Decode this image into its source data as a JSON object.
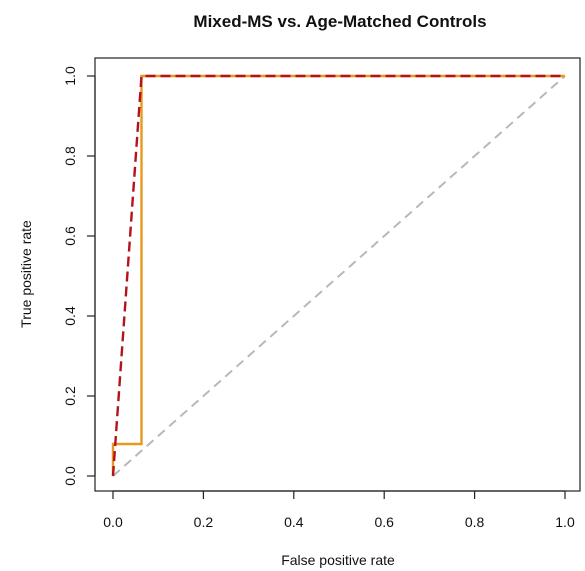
{
  "chart_data": {
    "type": "line",
    "title": "Mixed-MS vs. Age-Matched Controls",
    "xlabel": "False positive rate",
    "ylabel": "True positive rate",
    "xlim": [
      0,
      1
    ],
    "ylim": [
      0,
      1
    ],
    "x_ticks": [
      "0.0",
      "0.2",
      "0.4",
      "0.6",
      "0.8",
      "1.0"
    ],
    "y_ticks": [
      "0.0",
      "0.2",
      "0.4",
      "0.6",
      "0.8",
      "1.0"
    ],
    "grid": false,
    "series": [
      {
        "color": "#e69a1e",
        "style": "solid",
        "x": [
          0,
          0,
          0.063,
          0.063,
          1
        ],
        "y": [
          0,
          0.08,
          0.08,
          1,
          1
        ]
      },
      {
        "color": "#b5121b",
        "style": "dashed",
        "x": [
          0,
          0.063,
          0.063,
          1
        ],
        "y": [
          0,
          1,
          1,
          1
        ]
      },
      {
        "color": "#b8b8b8",
        "style": "dashed",
        "x": [
          0,
          1
        ],
        "y": [
          0,
          1
        ]
      }
    ]
  }
}
